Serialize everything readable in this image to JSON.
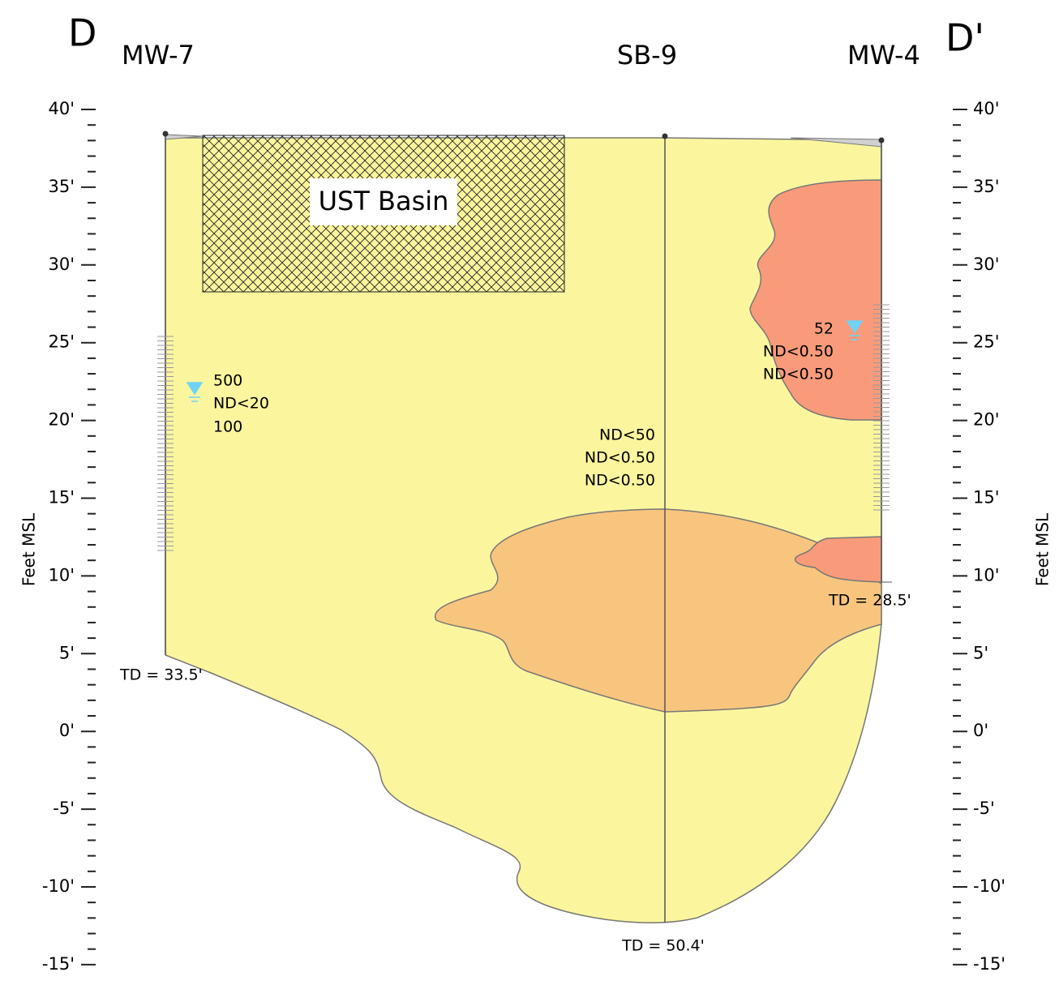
{
  "header": {
    "left_marker": "D",
    "right_marker": "D'"
  },
  "wells": [
    {
      "label": "MW-7",
      "td": "TD = 33.5'",
      "results": [
        "500",
        "ND<20",
        "100"
      ]
    },
    {
      "label": "SB-9",
      "td": "TD = 50.4'",
      "results": [
        "ND<50",
        "ND<0.50",
        "ND<0.50"
      ]
    },
    {
      "label": "MW-4",
      "td": "TD = 28.5'",
      "results": [
        "52",
        "ND<0.50",
        "ND<0.50"
      ]
    }
  ],
  "ust_label": "UST Basin",
  "axis": {
    "title": "Feet MSL",
    "ticks": [
      "40'",
      "35'",
      "30'",
      "25'",
      "20'",
      "15'",
      "10'",
      "5'",
      "0'",
      "-5'",
      "-10'",
      "-15'"
    ]
  }
}
